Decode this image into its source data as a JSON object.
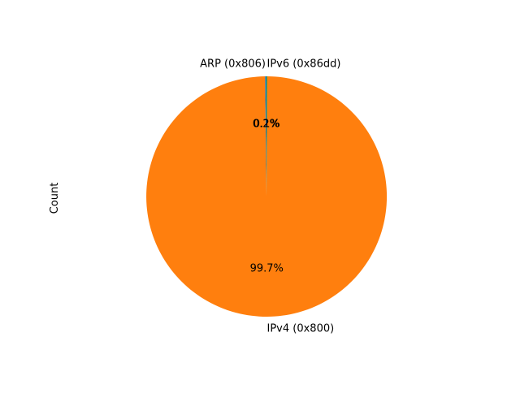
{
  "chart_data": {
    "type": "pie",
    "title": "",
    "ylabel": "Count",
    "start_angle_deg": 90,
    "direction": "counterclockwise",
    "slices": [
      {
        "label": "ARP (0x806)",
        "value": 0.2,
        "pct_label": "0.2%",
        "color": "#1f77b4"
      },
      {
        "label": "IPv4 (0x800)",
        "value": 99.7,
        "pct_label": "99.7%",
        "color": "#ff7f0e"
      },
      {
        "label": "IPv6 (0x86dd)",
        "value": 0.1,
        "pct_label": "0.1%",
        "color": "#2ca02c"
      }
    ],
    "legend": false
  }
}
